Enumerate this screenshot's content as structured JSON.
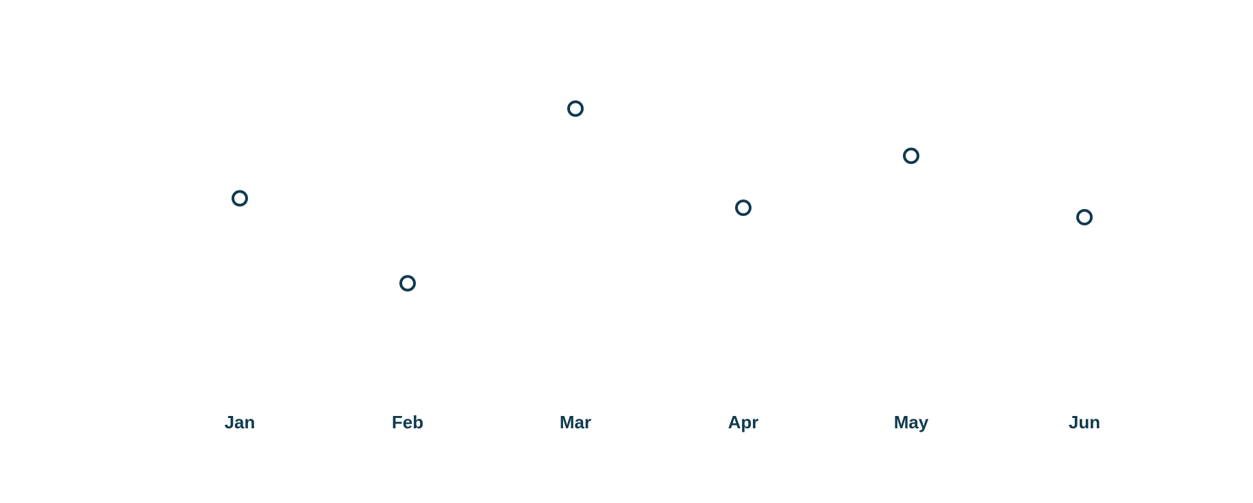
{
  "chart_data": {
    "type": "scatter",
    "title": "",
    "xlabel": "",
    "ylabel": "",
    "categories": [
      "Jan",
      "Feb",
      "Mar",
      "Apr",
      "May",
      "Jun"
    ],
    "series": [
      {
        "values": [
          58,
          40,
          77,
          56,
          67,
          54
        ]
      }
    ],
    "ylim": [
      0,
      100
    ],
    "grid": false,
    "legend": "none",
    "colors": {
      "marker": "#0f3a4f",
      "label": "#0f3a4f",
      "background": "#ffffff"
    }
  }
}
